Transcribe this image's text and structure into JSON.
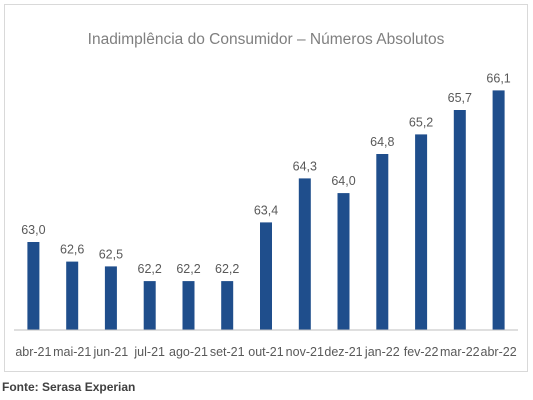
{
  "chart_data": {
    "type": "bar",
    "title": "Inadimplência do Consumidor – Números Absolutos",
    "categories": [
      "abr-21",
      "mai-21",
      "jun-21",
      "jul-21",
      "ago-21",
      "set-21",
      "out-21",
      "nov-21",
      "dez-21",
      "jan-22",
      "fev-22",
      "mar-22",
      "abr-22"
    ],
    "values": [
      63.0,
      62.6,
      62.5,
      62.2,
      62.2,
      62.2,
      63.4,
      64.3,
      64.0,
      64.8,
      65.2,
      65.7,
      66.1
    ],
    "data_labels": [
      "63,0",
      "62,6",
      "62,5",
      "62,2",
      "62,2",
      "62,2",
      "63,4",
      "64,3",
      "64,0",
      "64,8",
      "65,2",
      "65,7",
      "66,1"
    ],
    "xlabel": "",
    "ylabel": "",
    "ylim": [
      61.2,
      66.6
    ],
    "grid": false,
    "bar_color": "#1f4e8c",
    "axis_color": "#bfbfbf"
  },
  "source_text": "Fonte: Serasa Experian"
}
